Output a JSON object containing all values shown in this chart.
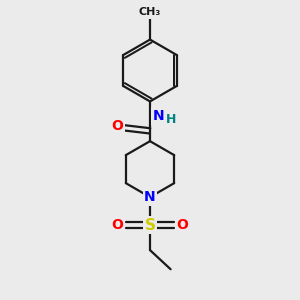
{
  "background_color": "#ebebeb",
  "bond_color": "#1a1a1a",
  "bond_width": 1.6,
  "atom_colors": {
    "O": "#ff0000",
    "N": "#0000ff",
    "S": "#cccc00",
    "C": "#1a1a1a",
    "H": "#008080"
  },
  "fig_size": [
    3.0,
    3.0
  ],
  "dpi": 100
}
